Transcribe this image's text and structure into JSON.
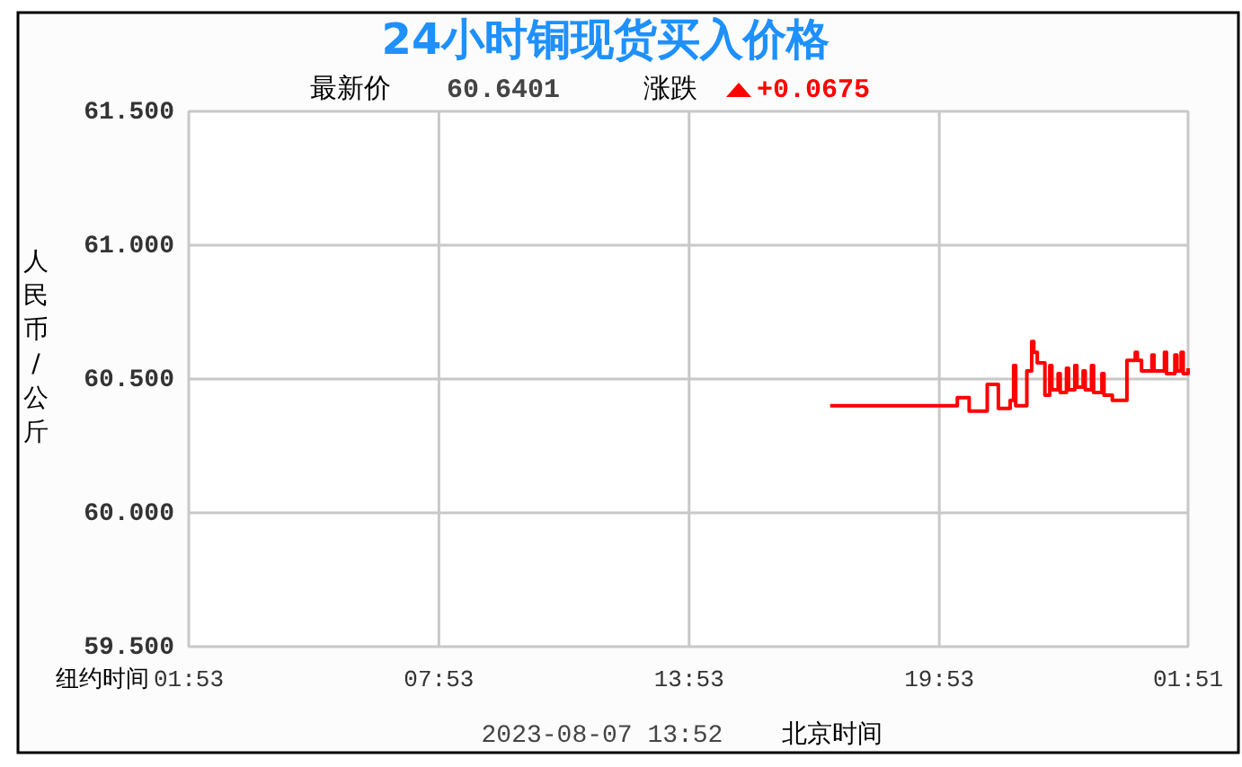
{
  "chart_data": {
    "type": "step",
    "title": "24小时铜现货买入价格",
    "xlabel": "纽约时间",
    "ylabel": "人民币/公斤",
    "annotations": [
      "最新价",
      "60.6401",
      "涨跌",
      "+0.0675",
      "2023-08-07 13:52",
      "北京时间"
    ],
    "series": [
      {
        "color": "#ff0000",
        "x": [
          "2023-08-06T17:16",
          "2023-08-06T20:19",
          "2023-08-06T20:36",
          "2023-08-06T21:02",
          "2023-08-06T21:18",
          "2023-08-06T21:35",
          "2023-08-06T21:40",
          "2023-08-06T21:43",
          "2023-08-06T21:56",
          "2023-08-06T21:59",
          "2023-08-06T22:06",
          "2023-08-06T22:09",
          "2023-08-06T22:14",
          "2023-08-06T22:25",
          "2023-08-06T22:32",
          "2023-08-06T22:35",
          "2023-08-06T22:44",
          "2023-08-06T22:47",
          "2023-08-06T22:56",
          "2023-08-06T22:59",
          "2023-08-06T23:08",
          "2023-08-06T23:11",
          "2023-08-06T23:20",
          "2023-08-06T23:23",
          "2023-08-06T23:32",
          "2023-08-06T23:35",
          "2023-08-06T23:47",
          "2023-08-06T23:50",
          "2023-08-07T00:02",
          "2023-08-07T00:18",
          "2023-08-07T00:23",
          "2023-08-07T00:35",
          "2023-08-07T00:38",
          "2023-08-07T00:44",
          "2023-08-07T00:59",
          "2023-08-07T01:02",
          "2023-08-07T01:17",
          "2023-08-07T01:20",
          "2023-08-07T01:32",
          "2023-08-07T01:35",
          "2023-08-07T01:41",
          "2023-08-07T01:44",
          "2023-08-07T01:51"
        ],
        "values": [
          60.4,
          60.43,
          60.38,
          60.48,
          60.39,
          60.42,
          60.55,
          60.4,
          60.4,
          60.53,
          60.64,
          60.6,
          60.56,
          60.44,
          60.55,
          60.46,
          60.52,
          60.45,
          60.54,
          60.46,
          60.55,
          60.47,
          60.53,
          60.46,
          60.55,
          60.45,
          60.52,
          60.44,
          60.42,
          60.42,
          60.57,
          60.6,
          60.57,
          60.53,
          60.59,
          60.53,
          60.6,
          60.52,
          60.59,
          60.53,
          60.6,
          60.52,
          60.54
        ]
      }
    ],
    "xlim": [
      "2023-08-06T01:53",
      "2023-08-07T01:51"
    ],
    "xticks": [
      {
        "value": "2023-08-06T01:53",
        "label": "01:53"
      },
      {
        "value": "2023-08-06T07:53",
        "label": "07:53"
      },
      {
        "value": "2023-08-06T13:53",
        "label": "13:53"
      },
      {
        "value": "2023-08-06T19:53",
        "label": "19:53"
      },
      {
        "value": "2023-08-07T01:51",
        "label": "01:51"
      }
    ],
    "ylim": [
      59.5,
      61.5
    ],
    "yticks": [
      {
        "value": 59.5,
        "label": "59.500"
      },
      {
        "value": 60,
        "label": "60.000"
      },
      {
        "value": 60.5,
        "label": "60.500"
      },
      {
        "value": 61,
        "label": "61.000"
      },
      {
        "value": 61.5,
        "label": "61.500"
      }
    ],
    "grid": true
  }
}
